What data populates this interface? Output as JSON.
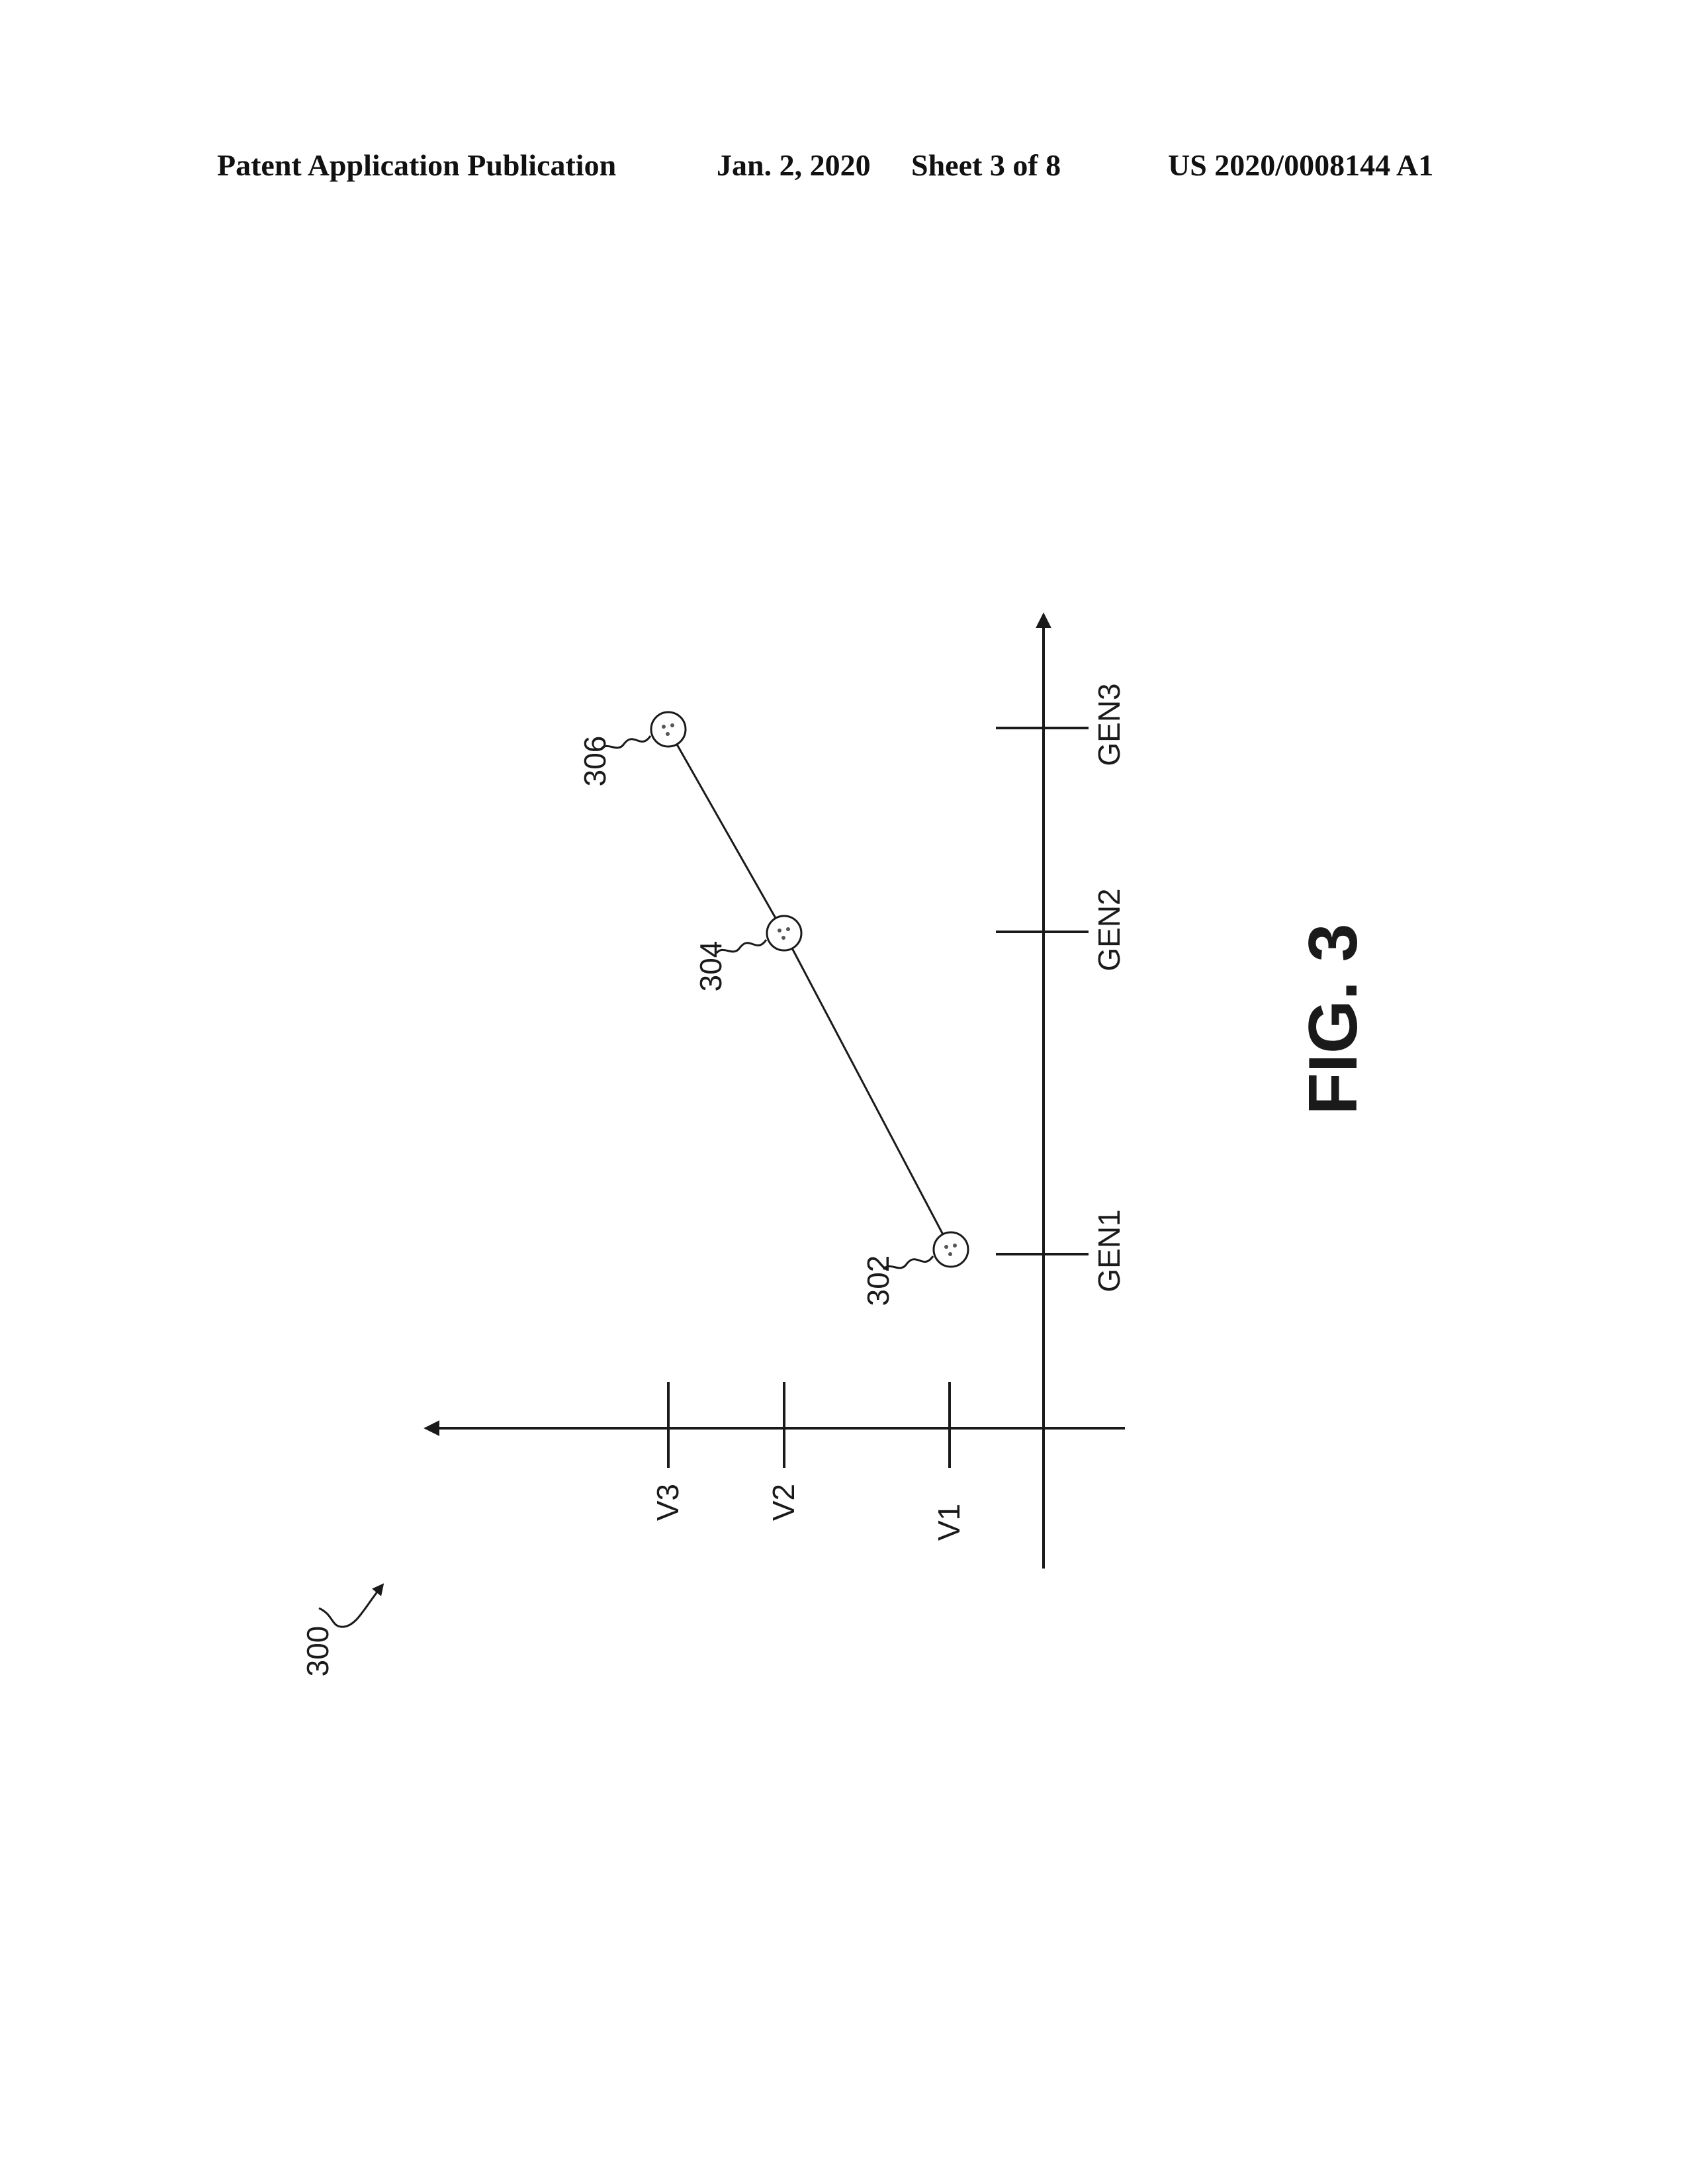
{
  "header": {
    "publication": "Patent Application Publication",
    "date": "Jan. 2, 2020",
    "sheet": "Sheet 3 of 8",
    "number": "US 2020/0008144 A1"
  },
  "figure": {
    "caption": "FIG. 3",
    "reference": "300",
    "x_ticks": [
      "GEN1",
      "GEN2",
      "GEN3"
    ],
    "y_ticks": [
      "V1",
      "V2",
      "V3"
    ],
    "points": [
      {
        "ref": "302",
        "gen": "GEN1",
        "value": "V1"
      },
      {
        "ref": "304",
        "gen": "GEN2",
        "value": "V2"
      },
      {
        "ref": "306",
        "gen": "GEN3",
        "value": "V3"
      }
    ]
  }
}
